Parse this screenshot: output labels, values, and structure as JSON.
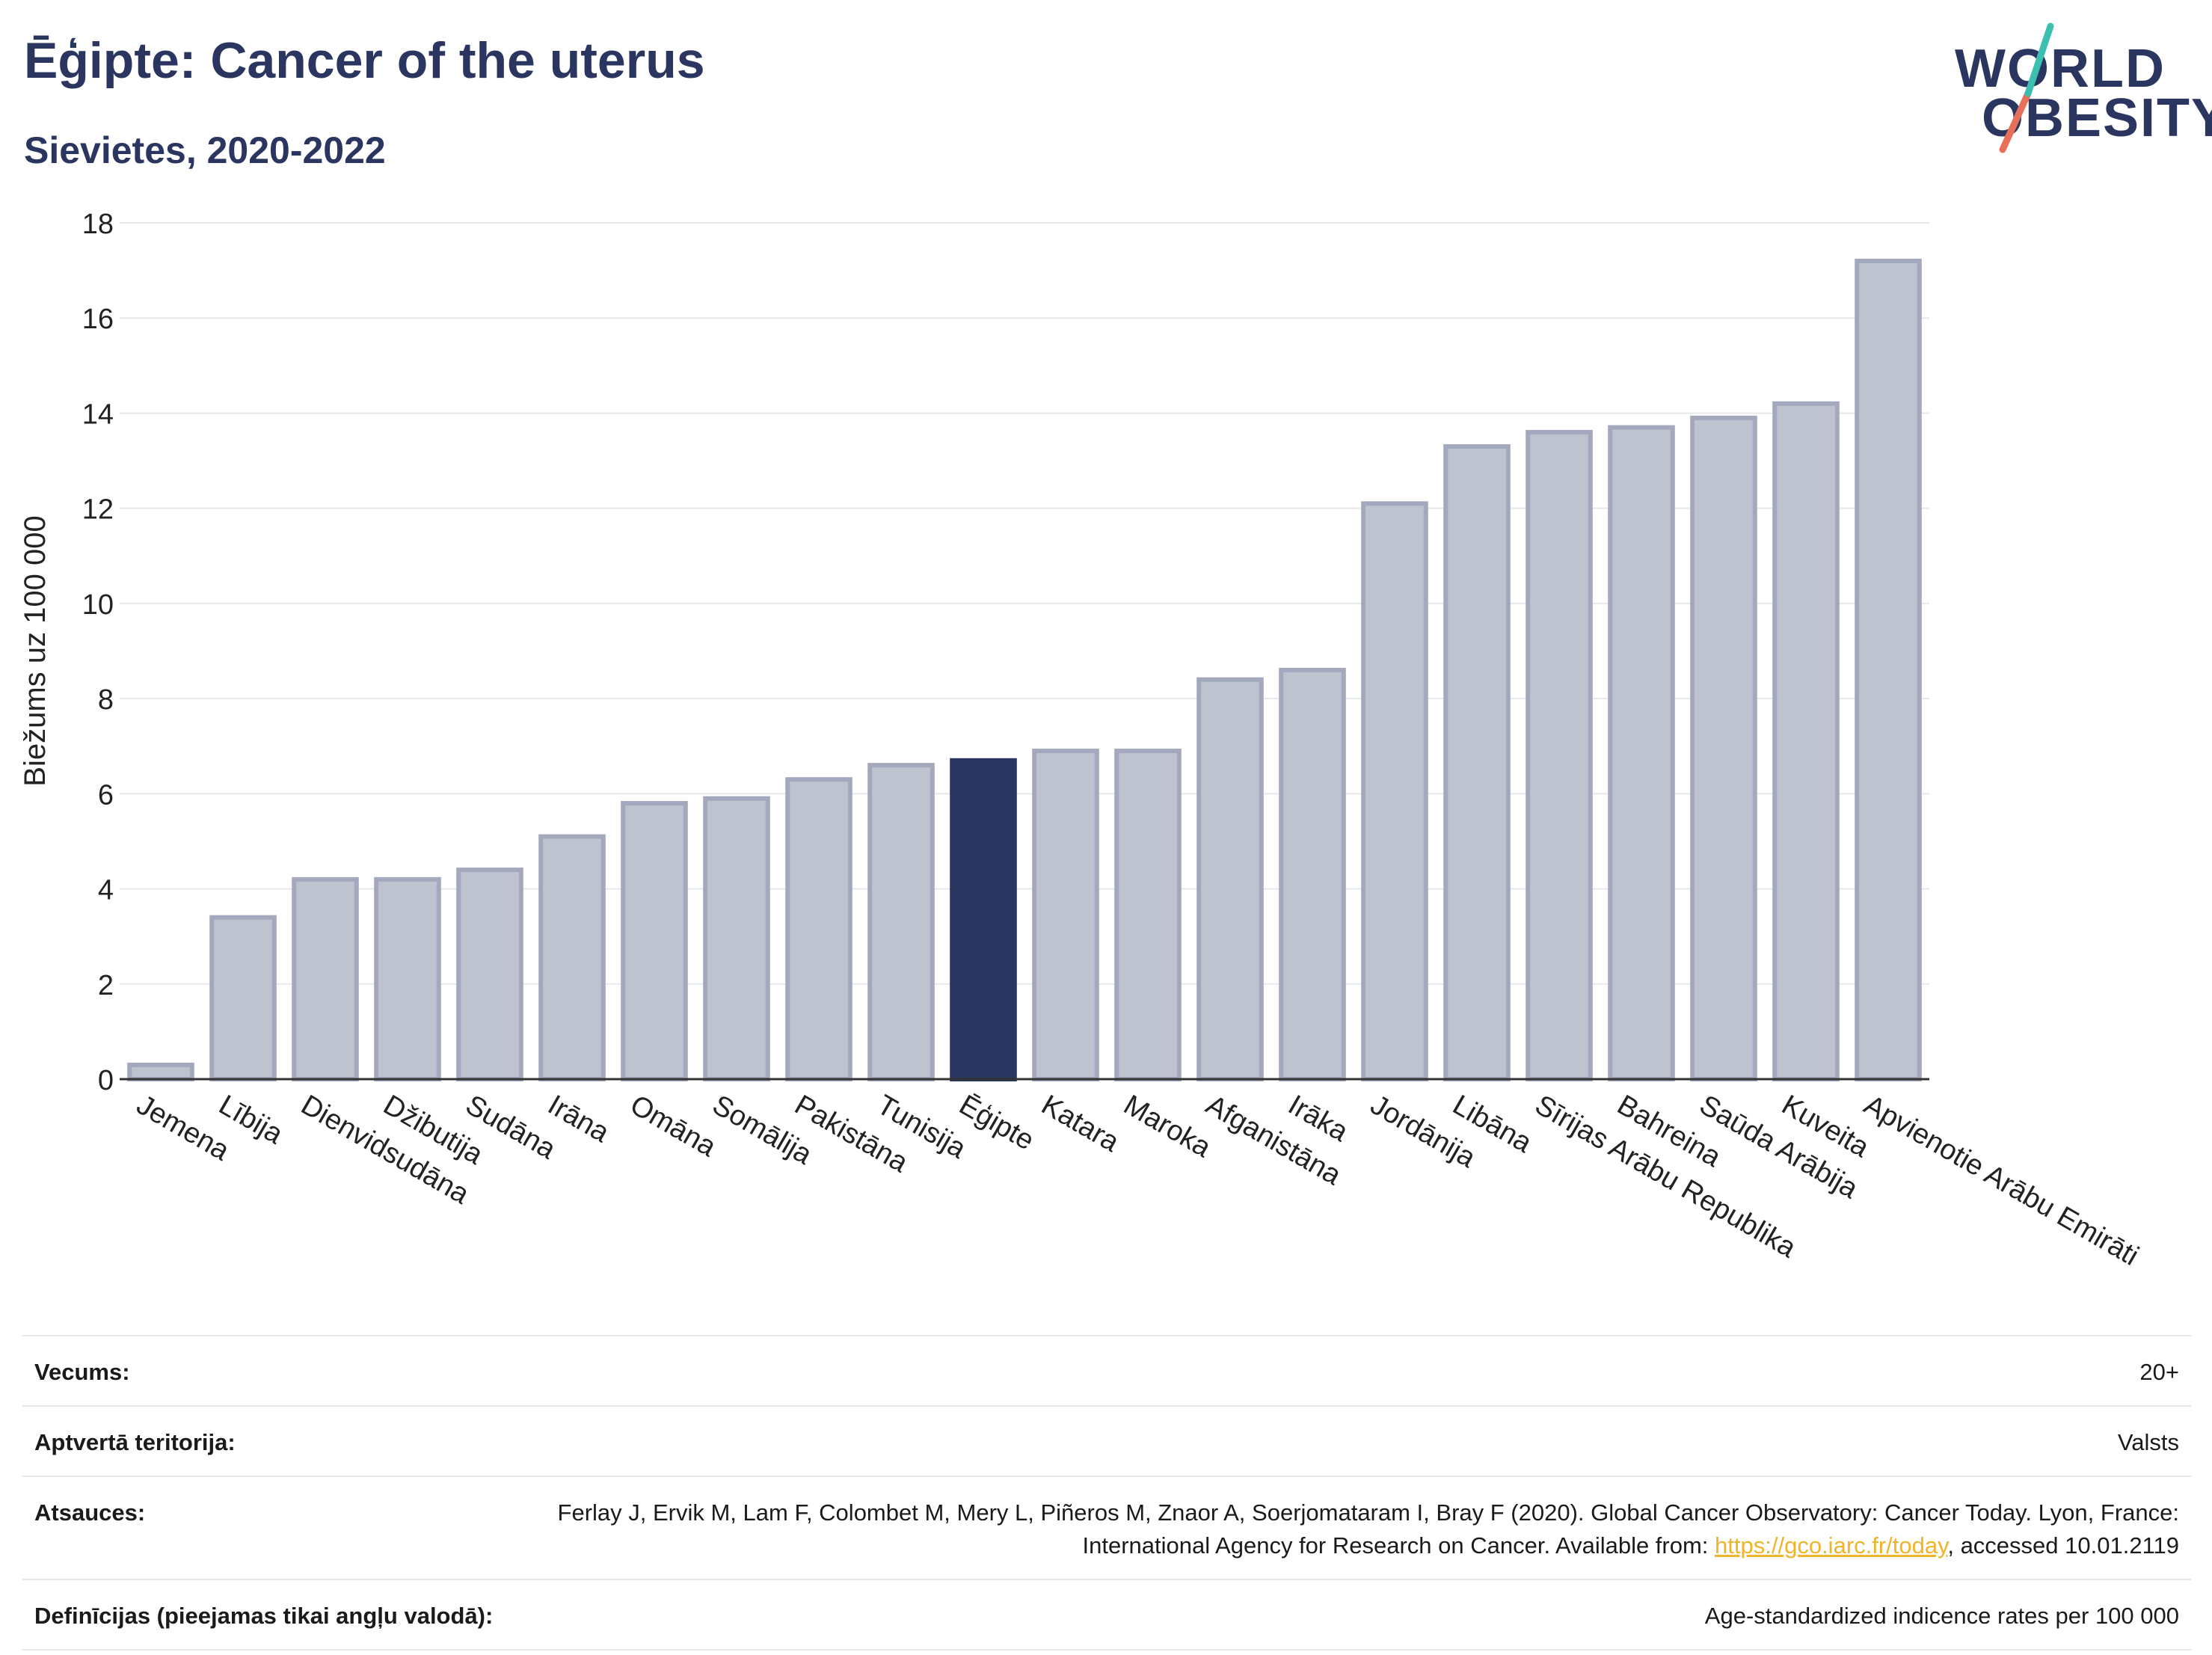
{
  "header": {
    "title": "Ēģipte: Cancer of the uterus",
    "subtitle": "Sievietes, 2020-2022"
  },
  "logo": {
    "line1": "WORLD",
    "line2": "OBESITY"
  },
  "chart_data": {
    "type": "bar",
    "ylabel": "Biežums uz 100 000",
    "ylim": [
      0,
      18
    ],
    "yticks": [
      0,
      2,
      4,
      6,
      8,
      10,
      12,
      14,
      16,
      18
    ],
    "grid": true,
    "highlight": "Ēģipte",
    "colors": {
      "bar": "#bfc3d0",
      "bar_edge": "#a3a8bc",
      "highlight": "#2a3560"
    },
    "categories": [
      "Jemena",
      "Lībija",
      "Dienvidsudāna",
      "Džibutija",
      "Sudāna",
      "Irāna",
      "Omāna",
      "Somālija",
      "Pakistāna",
      "Tunisija",
      "Ēģipte",
      "Katara",
      "Maroka",
      "Afganistāna",
      "Irāka",
      "Jordānija",
      "Libāna",
      "Sīrijas Arābu Republika",
      "Bahreina",
      "Saūda Arābija",
      "Kuveita",
      "Apvienotie Arābu Emirāti"
    ],
    "values": [
      0.3,
      3.4,
      4.2,
      4.2,
      4.4,
      5.1,
      5.8,
      5.9,
      6.3,
      6.6,
      6.7,
      6.9,
      6.9,
      8.4,
      8.6,
      12.1,
      13.3,
      13.6,
      13.7,
      13.9,
      14.2,
      17.2
    ]
  },
  "info": {
    "age_label": "Vecums:",
    "age_value": "20+",
    "territory_label": "Aptvertā teritorija:",
    "territory_value": "Valsts",
    "references_label": "Atsauces:",
    "references_text_1": "Ferlay J, Ervik M, Lam F, Colombet M, Mery L, Piñeros M, Znaor A, Soerjomataram I, Bray F (2020). Global Cancer Observatory: Cancer Today. Lyon, France: International Agency for Research on Cancer. Available from: ",
    "references_link": "https://gco.iarc.fr/today",
    "references_text_2": ", accessed 10.01.2119",
    "definitions_label": "Definīcijas (pieejamas tikai angļu valodā):",
    "definitions_value": "Age-standardized indicence rates per 100 000"
  }
}
